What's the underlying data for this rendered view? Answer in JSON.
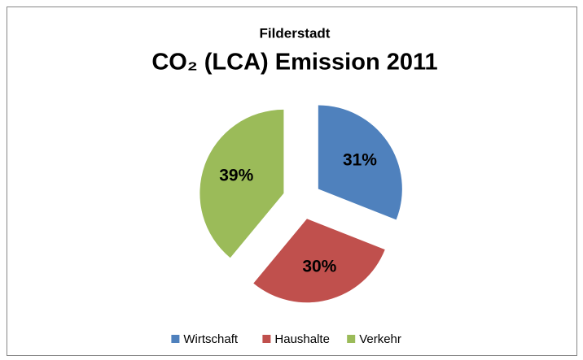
{
  "chart_data": {
    "type": "pie",
    "title": "Filderstadt",
    "subtitle": "CO₂ (LCA) Emission 2011",
    "categories": [
      "Wirtschaft",
      "Haushalte",
      "Verkehr"
    ],
    "values": [
      31,
      30,
      39
    ],
    "value_labels": [
      "31%",
      "30%",
      "39%"
    ],
    "colors": [
      "#4f81bd",
      "#c0504d",
      "#9bbb59"
    ],
    "legend": "bottom"
  }
}
